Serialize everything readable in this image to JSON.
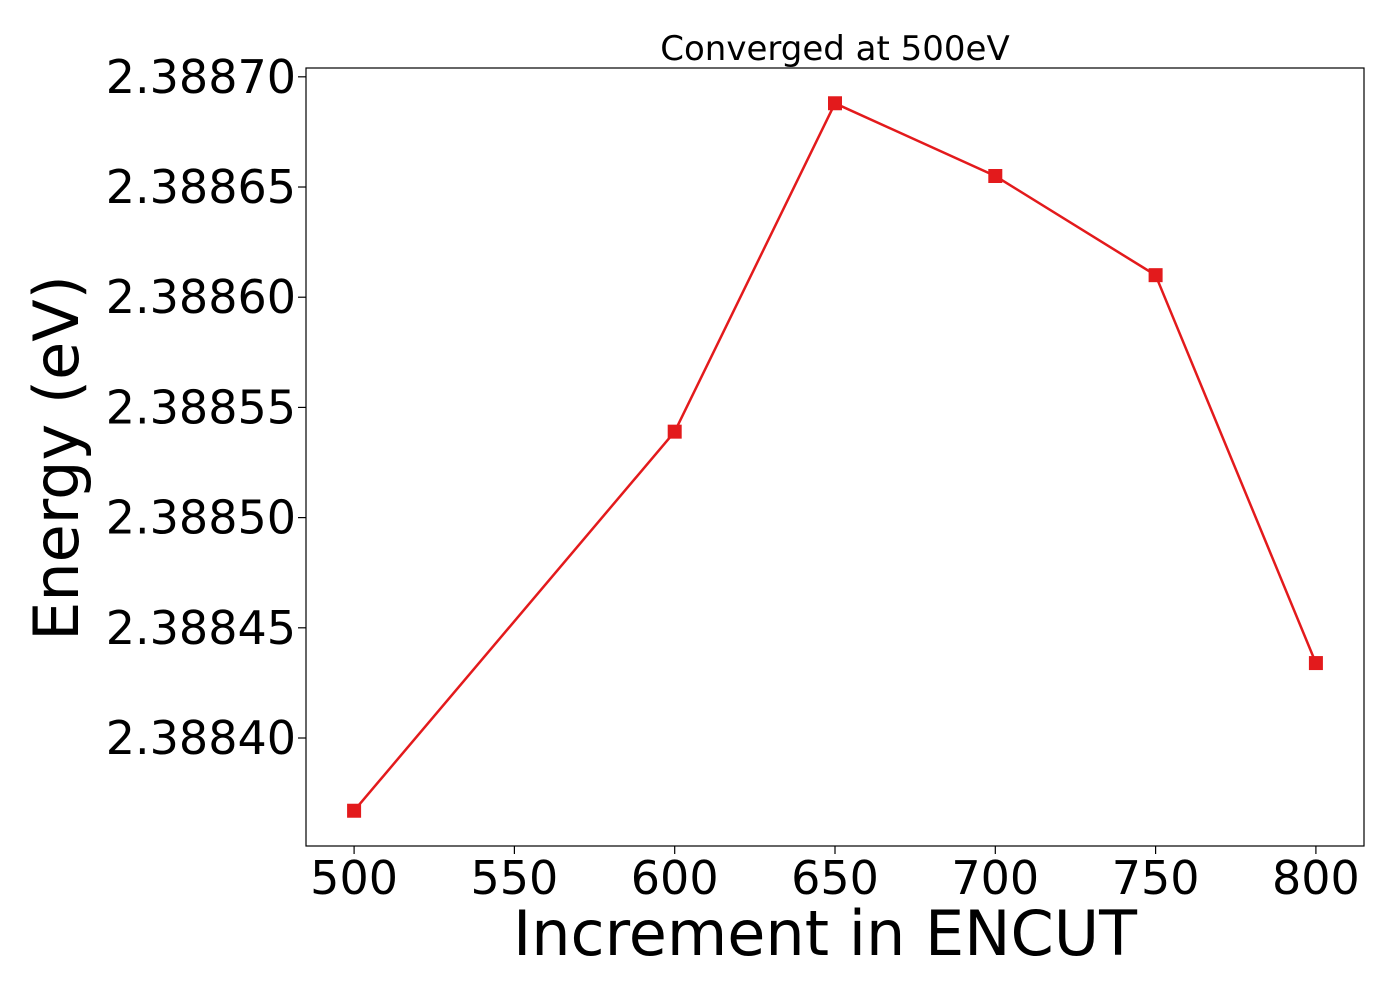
{
  "chart_data": {
    "type": "line",
    "title": "Converged at 500eV",
    "xlabel": "Increment in ENCUT",
    "ylabel": "Energy (eV)",
    "x": [
      500,
      600,
      650,
      700,
      750,
      800
    ],
    "series": [
      {
        "values": [
          2.388367,
          2.388539,
          2.388688,
          2.388655,
          2.38861,
          2.388434
        ],
        "color": "#e31a1c",
        "marker": "square"
      }
    ],
    "xlim": [
      485,
      815
    ],
    "ylim": [
      2.388351,
      2.388704
    ],
    "xticks": [
      500,
      550,
      600,
      650,
      700,
      750,
      800
    ],
    "xtick_labels": [
      "500",
      "550",
      "600",
      "650",
      "700",
      "750",
      "800"
    ],
    "yticks": [
      2.3884,
      2.38845,
      2.3885,
      2.38855,
      2.3886,
      2.38865,
      2.3887
    ],
    "ytick_labels": [
      "2.38840",
      "2.38845",
      "2.38850",
      "2.38855",
      "2.38860",
      "2.38865",
      "2.38870"
    ],
    "grid": false,
    "legend": "none"
  }
}
